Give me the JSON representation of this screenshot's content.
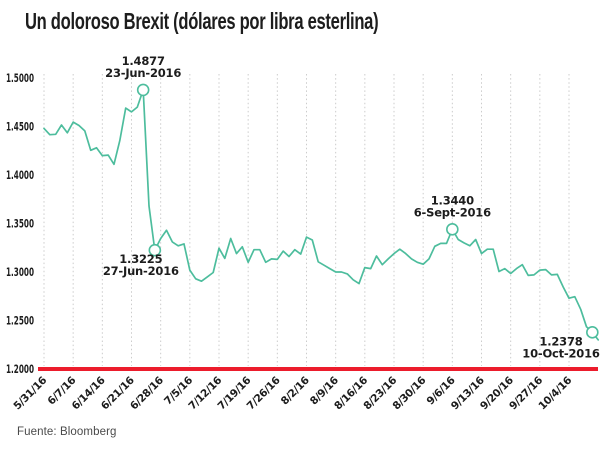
{
  "title": "Un doloroso Brexit (dólares por libra esterlina)",
  "source": "Fuente: Bloomberg",
  "colors": {
    "line": "#4dbd9d",
    "marker_fill": "#ffffff",
    "baseline_red": "#ec1c2c",
    "grid": "#cccccc",
    "text": "#1d1d1d",
    "source_text": "#4a4a4a"
  },
  "chart_data": {
    "type": "line",
    "title": "Un doloroso Brexit (dólares por libra esterlina)",
    "xlabel": "",
    "ylabel": "",
    "ylim": [
      1.2,
      1.5
    ],
    "grid": "vertical-dashed",
    "legend": "none",
    "baseline_value": 1.2,
    "y_ticks": [
      {
        "v": 1.5,
        "label": "1.5000"
      },
      {
        "v": 1.45,
        "label": "1.4500"
      },
      {
        "v": 1.4,
        "label": "1.4000"
      },
      {
        "v": 1.35,
        "label": "1.3500"
      },
      {
        "v": 1.3,
        "label": "1.3000"
      },
      {
        "v": 1.25,
        "label": "1.2500"
      },
      {
        "v": 1.2,
        "label": "1.2000"
      }
    ],
    "x_tick_step_points": 5,
    "x_tick_labels": [
      "5/31/16",
      "6/7/16",
      "6/14/16",
      "6/21/16",
      "6/28/16",
      "7/5/16",
      "7/12/16",
      "7/19/16",
      "7/26/16",
      "8/2/16",
      "8/9/16",
      "8/16/16",
      "8/23/16",
      "8/30/16",
      "9/6/16",
      "9/13/16",
      "9/20/16",
      "9/27/16",
      "10/4/16"
    ],
    "dates": [
      "5/31",
      "6/1",
      "6/2",
      "6/3",
      "6/6",
      "6/7",
      "6/8",
      "6/9",
      "6/10",
      "6/13",
      "6/14",
      "6/15",
      "6/16",
      "6/17",
      "6/20",
      "6/21",
      "6/22",
      "6/23",
      "6/24",
      "6/27",
      "6/28",
      "6/29",
      "6/30",
      "7/1",
      "7/4",
      "7/5",
      "7/6",
      "7/7",
      "7/8",
      "7/11",
      "7/12",
      "7/13",
      "7/14",
      "7/15",
      "7/18",
      "7/19",
      "7/20",
      "7/21",
      "7/22",
      "7/25",
      "7/26",
      "7/27",
      "7/28",
      "7/29",
      "8/1",
      "8/2",
      "8/3",
      "8/4",
      "8/5",
      "8/8",
      "8/9",
      "8/10",
      "8/11",
      "8/12",
      "8/15",
      "8/16",
      "8/17",
      "8/18",
      "8/19",
      "8/22",
      "8/23",
      "8/24",
      "8/25",
      "8/26",
      "8/29",
      "8/30",
      "8/31",
      "9/1",
      "9/2",
      "9/5",
      "9/6",
      "9/7",
      "9/8",
      "9/9",
      "9/12",
      "9/13",
      "9/14",
      "9/15",
      "9/16",
      "9/19",
      "9/20",
      "9/21",
      "9/22",
      "9/23",
      "9/26",
      "9/27",
      "9/28",
      "9/29",
      "9/30",
      "10/3",
      "10/4",
      "10/5",
      "10/6",
      "10/7",
      "10/10",
      "10/11"
    ],
    "values": [
      1.448,
      1.4415,
      1.442,
      1.4515,
      1.4435,
      1.4545,
      1.451,
      1.4455,
      1.4255,
      1.428,
      1.42,
      1.4205,
      1.411,
      1.4355,
      1.469,
      1.465,
      1.47,
      1.4877,
      1.368,
      1.3225,
      1.3345,
      1.343,
      1.331,
      1.327,
      1.329,
      1.302,
      1.293,
      1.2905,
      1.295,
      1.2995,
      1.3245,
      1.314,
      1.3345,
      1.319,
      1.326,
      1.31,
      1.323,
      1.323,
      1.31,
      1.3135,
      1.313,
      1.3215,
      1.316,
      1.323,
      1.3185,
      1.336,
      1.333,
      1.3105,
      1.307,
      1.3035,
      1.3,
      1.3,
      1.298,
      1.292,
      1.288,
      1.3045,
      1.3035,
      1.3165,
      1.3075,
      1.3135,
      1.319,
      1.3235,
      1.319,
      1.3135,
      1.31,
      1.308,
      1.3135,
      1.3265,
      1.3295,
      1.3295,
      1.344,
      1.3335,
      1.33,
      1.327,
      1.3335,
      1.319,
      1.3235,
      1.3235,
      1.3005,
      1.3035,
      1.2985,
      1.3035,
      1.3075,
      1.2965,
      1.297,
      1.302,
      1.3025,
      1.297,
      1.2975,
      1.2845,
      1.273,
      1.2745,
      1.2615,
      1.2435,
      1.2378,
      1.23
    ],
    "annotations": [
      {
        "index": 17,
        "value_label": "1.4877",
        "date_label": "23-Jun-2016",
        "placement": "above"
      },
      {
        "index": 19,
        "value_label": "1.3225",
        "date_label": "27-Jun-2016",
        "placement": "below-left"
      },
      {
        "index": 70,
        "value_label": "1.3440",
        "date_label": "6-Sept-2016",
        "placement": "above"
      },
      {
        "index": 94,
        "value_label": "1.2378",
        "date_label": "10-Oct-2016",
        "placement": "below-left"
      }
    ]
  }
}
